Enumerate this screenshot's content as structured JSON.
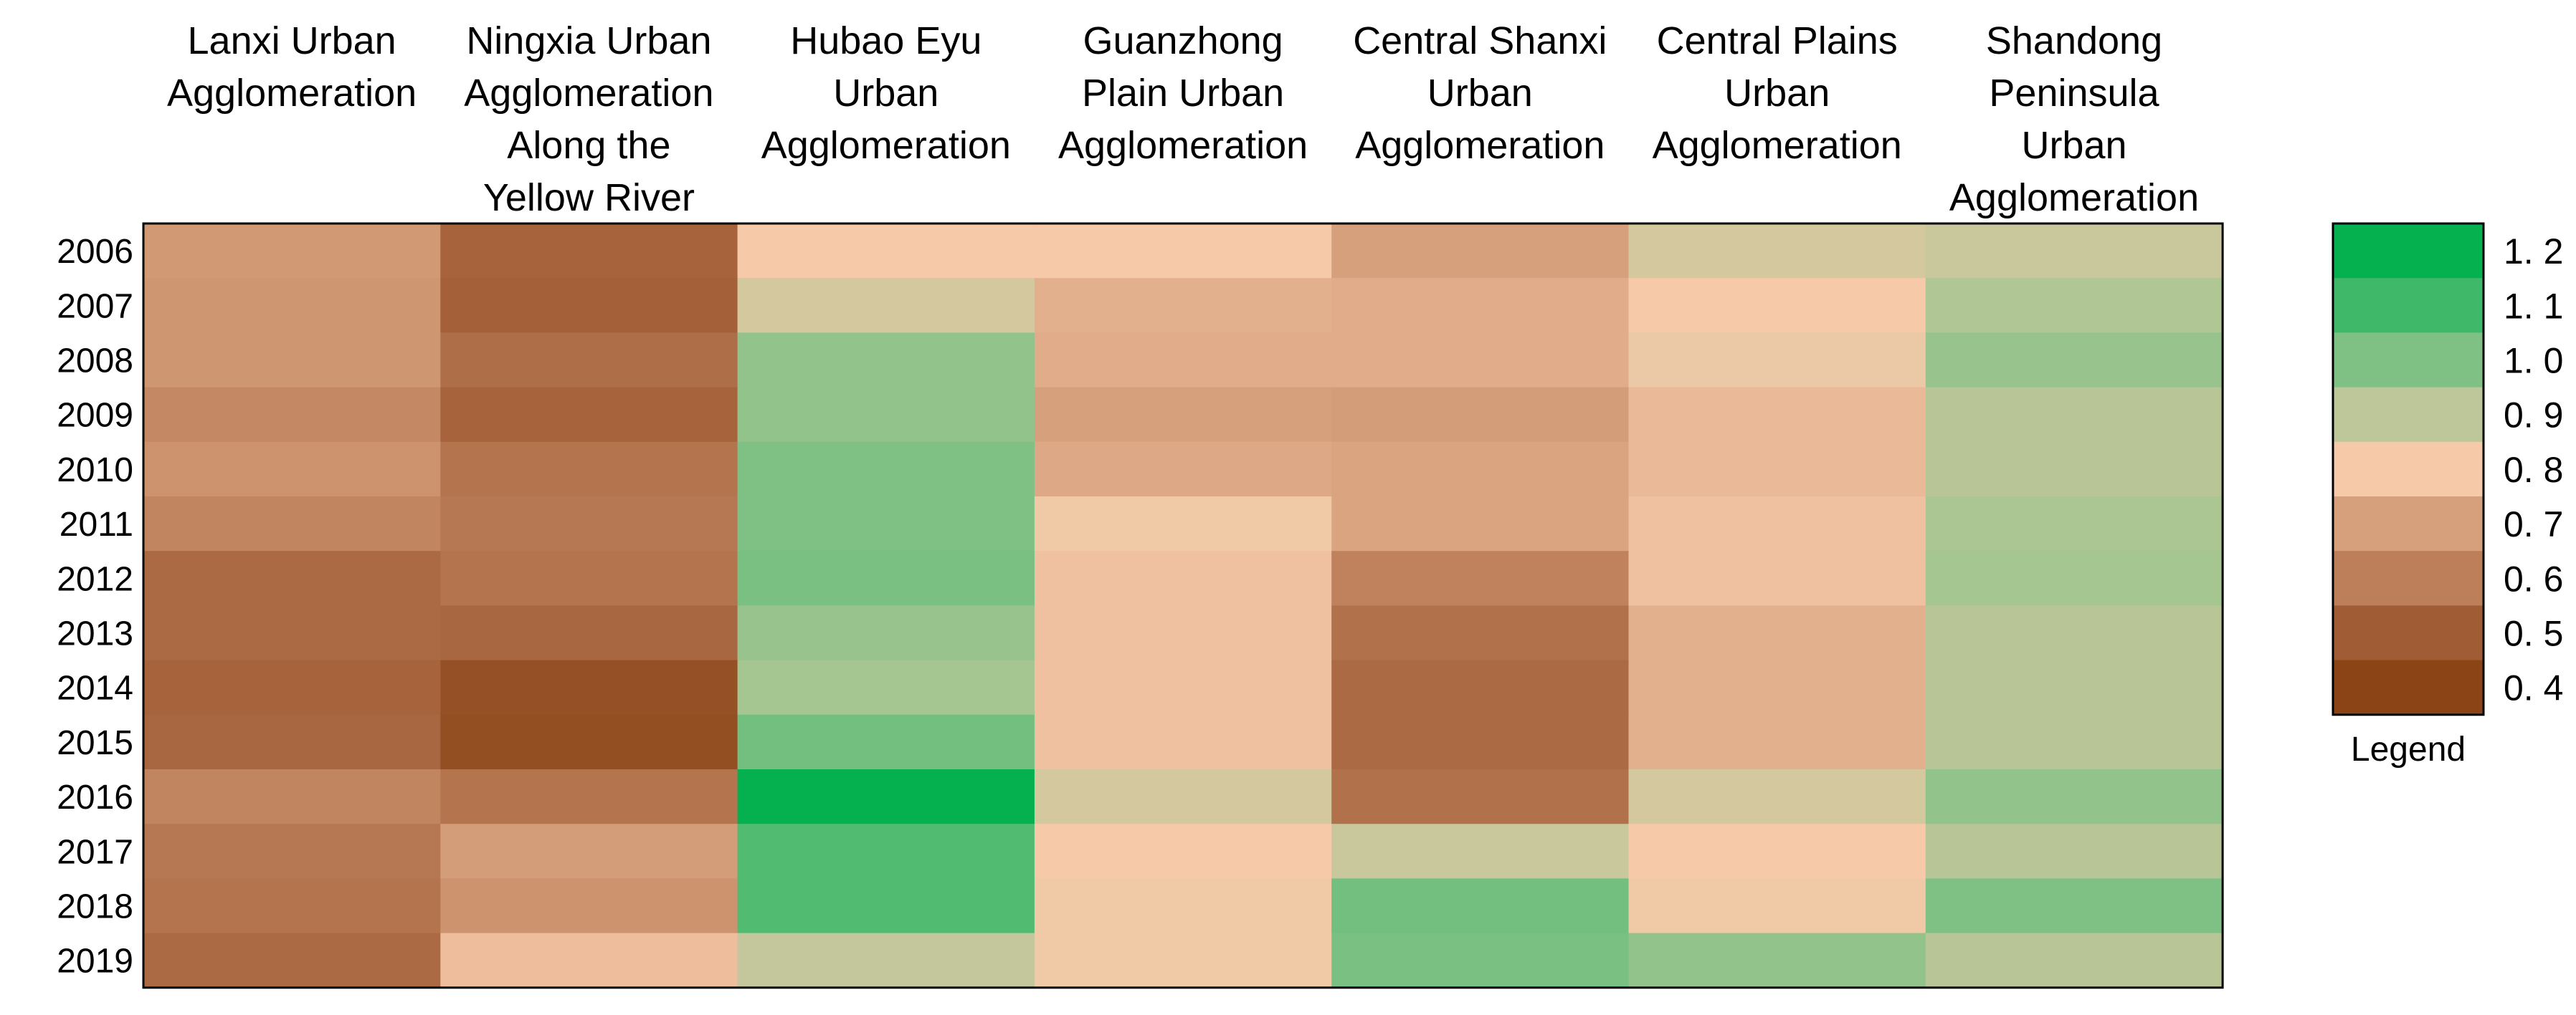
{
  "chart_data": {
    "type": "heatmap",
    "columns": [
      [
        "Lanxi Urban",
        "Agglomeration"
      ],
      [
        "Ningxia Urban",
        "Agglomeration",
        "Along the",
        "Yellow River"
      ],
      [
        "Hubao Eyu",
        "Urban",
        "Agglomeration"
      ],
      [
        "Guanzhong",
        "Plain Urban",
        "Agglomeration"
      ],
      [
        "Central Shanxi",
        "Urban",
        "Agglomeration"
      ],
      [
        "Central Plains",
        "Urban",
        "Agglomeration"
      ],
      [
        "Shandong",
        "Peninsula",
        "Urban",
        "Agglomeration"
      ]
    ],
    "rows": [
      "2006",
      "2007",
      "2008",
      "2009",
      "2010",
      "2011",
      "2012",
      "2013",
      "2014",
      "2015",
      "2016",
      "2017",
      "2018",
      "2019"
    ],
    "values": [
      [
        0.68,
        0.52,
        0.8,
        0.8,
        0.7,
        0.86,
        0.88
      ],
      [
        0.67,
        0.51,
        0.86,
        0.74,
        0.73,
        0.8,
        0.92
      ],
      [
        0.67,
        0.55,
        0.97,
        0.73,
        0.73,
        0.82,
        0.96
      ],
      [
        0.63,
        0.52,
        0.97,
        0.7,
        0.69,
        0.76,
        0.91
      ],
      [
        0.66,
        0.57,
        1.0,
        0.72,
        0.71,
        0.76,
        0.91
      ],
      [
        0.62,
        0.58,
        1.0,
        0.81,
        0.71,
        0.78,
        0.93
      ],
      [
        0.54,
        0.57,
        1.01,
        0.78,
        0.61,
        0.78,
        0.94
      ],
      [
        0.54,
        0.53,
        0.96,
        0.78,
        0.56,
        0.74,
        0.91
      ],
      [
        0.52,
        0.45,
        0.94,
        0.78,
        0.54,
        0.74,
        0.91
      ],
      [
        0.53,
        0.44,
        1.02,
        0.78,
        0.54,
        0.74,
        0.91
      ],
      [
        0.62,
        0.57,
        1.2,
        0.86,
        0.56,
        0.86,
        0.97
      ],
      [
        0.58,
        0.69,
        1.07,
        0.8,
        0.88,
        0.8,
        0.91
      ],
      [
        0.57,
        0.66,
        1.07,
        0.81,
        1.02,
        0.81,
        1.0
      ],
      [
        0.54,
        0.77,
        0.89,
        0.81,
        1.01,
        0.97,
        0.91
      ]
    ],
    "legend": {
      "title": "Legend",
      "ticks": [
        "1. 2",
        "1. 1",
        "1. 0",
        "0. 9",
        "0. 8",
        "0. 7",
        "0. 6",
        "0. 5",
        "0. 4"
      ],
      "tick_values": [
        1.2,
        1.1,
        1.0,
        0.9,
        0.8,
        0.7,
        0.6,
        0.5,
        0.4
      ],
      "colors": [
        "#05b04f",
        "#3fb86a",
        "#7fc185",
        "#bec799",
        "#f6c9a9",
        "#d7a07c",
        "#bc7f59",
        "#a05c35",
        "#8b4415"
      ],
      "placement": "right"
    },
    "grid": false,
    "range": [
      0.4,
      1.2
    ]
  }
}
